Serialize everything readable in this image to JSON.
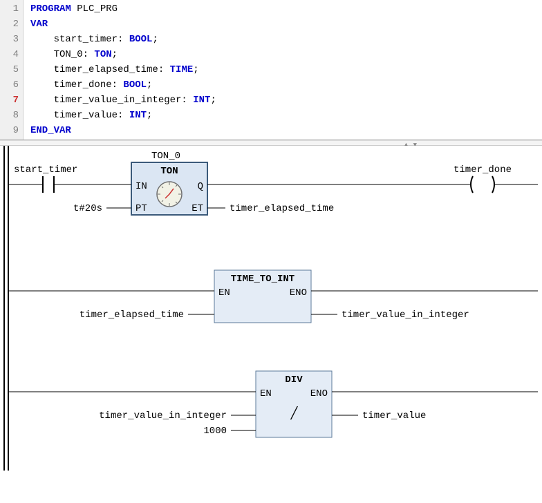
{
  "code": {
    "lines": [
      {
        "n": "1",
        "segs": [
          {
            "t": "PROGRAM",
            "c": "kw"
          },
          {
            "t": " ",
            "c": "id"
          },
          {
            "t": "PLC_PRG",
            "c": "id"
          }
        ]
      },
      {
        "n": "2",
        "segs": [
          {
            "t": "VAR",
            "c": "kw"
          }
        ]
      },
      {
        "n": "3",
        "segs": [
          {
            "t": "    start_timer: ",
            "c": "id"
          },
          {
            "t": "BOOL",
            "c": "ty"
          },
          {
            "t": ";",
            "c": "id"
          }
        ]
      },
      {
        "n": "4",
        "segs": [
          {
            "t": "    TON_0: ",
            "c": "id"
          },
          {
            "t": "TON",
            "c": "ty"
          },
          {
            "t": ";",
            "c": "id"
          }
        ]
      },
      {
        "n": "5",
        "segs": [
          {
            "t": "    timer_elapsed_time: ",
            "c": "id"
          },
          {
            "t": "TIME",
            "c": "ty"
          },
          {
            "t": ";",
            "c": "id"
          }
        ]
      },
      {
        "n": "6",
        "segs": [
          {
            "t": "    timer_done: ",
            "c": "id"
          },
          {
            "t": "BOOL",
            "c": "ty"
          },
          {
            "t": ";",
            "c": "id"
          }
        ]
      },
      {
        "n": "7",
        "cur": true,
        "segs": [
          {
            "t": "    timer_value_in_integer: ",
            "c": "id"
          },
          {
            "t": "INT",
            "c": "ty"
          },
          {
            "t": ";",
            "c": "id"
          }
        ]
      },
      {
        "n": "8",
        "segs": [
          {
            "t": "    timer_value: ",
            "c": "id"
          },
          {
            "t": "INT",
            "c": "ty"
          },
          {
            "t": ";",
            "c": "id"
          }
        ]
      },
      {
        "n": "9",
        "segs": [
          {
            "t": "END_VAR",
            "c": "kw"
          }
        ]
      }
    ]
  },
  "ladder": {
    "rung1": {
      "instance": "TON_0",
      "fb_type": "TON",
      "in_left_top": "IN",
      "in_left_bot": "PT",
      "out_right_top": "Q",
      "out_right_bot": "ET",
      "contact_var": "start_timer",
      "pt_value": "t#20s",
      "et_var": "timer_elapsed_time",
      "coil_var": "timer_done"
    },
    "rung2": {
      "fb_type": "TIME_TO_INT",
      "en": "EN",
      "eno": "ENO",
      "in_var": "timer_elapsed_time",
      "out_var": "timer_value_in_integer"
    },
    "rung3": {
      "fb_type": "DIV",
      "en": "EN",
      "eno": "ENO",
      "in_var1": "timer_value_in_integer",
      "in_var2": "1000",
      "out_var": "timer_value"
    },
    "colors": {
      "box_fill": "#e4ecf6",
      "box_stroke": "#5b7a9a",
      "wire": "#000000"
    }
  }
}
